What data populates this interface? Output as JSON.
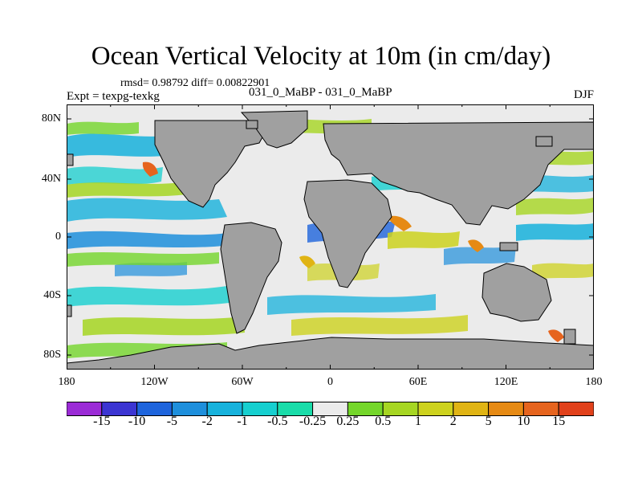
{
  "title": "Ocean Vertical Velocity at 10m (in cm/day)",
  "stats": "rmsd= 0.98792 diff= 0.00822901",
  "expt": "Expt = texpg-texkg",
  "case": "031_0_MaBP - 031_0_MaBP",
  "season": "DJF",
  "map": {
    "x_ticks": [
      "180",
      "120W",
      "60W",
      "0",
      "60E",
      "120E",
      "180"
    ],
    "y_ticks": [
      "80N",
      "40N",
      "0",
      "40S",
      "80S"
    ],
    "land_color": "#a0a0a0",
    "background_color": "#ebebeb"
  },
  "colorbar": {
    "labels": [
      "-15",
      "-10",
      "-5",
      "-2",
      "-1",
      "-0.5",
      "-0.25",
      "0.25",
      "0.5",
      "1",
      "2",
      "5",
      "10",
      "15"
    ],
    "colors": [
      "#9b2bd6",
      "#3c35d2",
      "#1e64dc",
      "#1e8fdc",
      "#17b2dc",
      "#16cfcf",
      "#19dca9",
      "#ebebeb",
      "#74d62a",
      "#a6d622",
      "#cdd21e",
      "#e0b414",
      "#e68a14",
      "#e6641e",
      "#e1411b"
    ]
  }
}
